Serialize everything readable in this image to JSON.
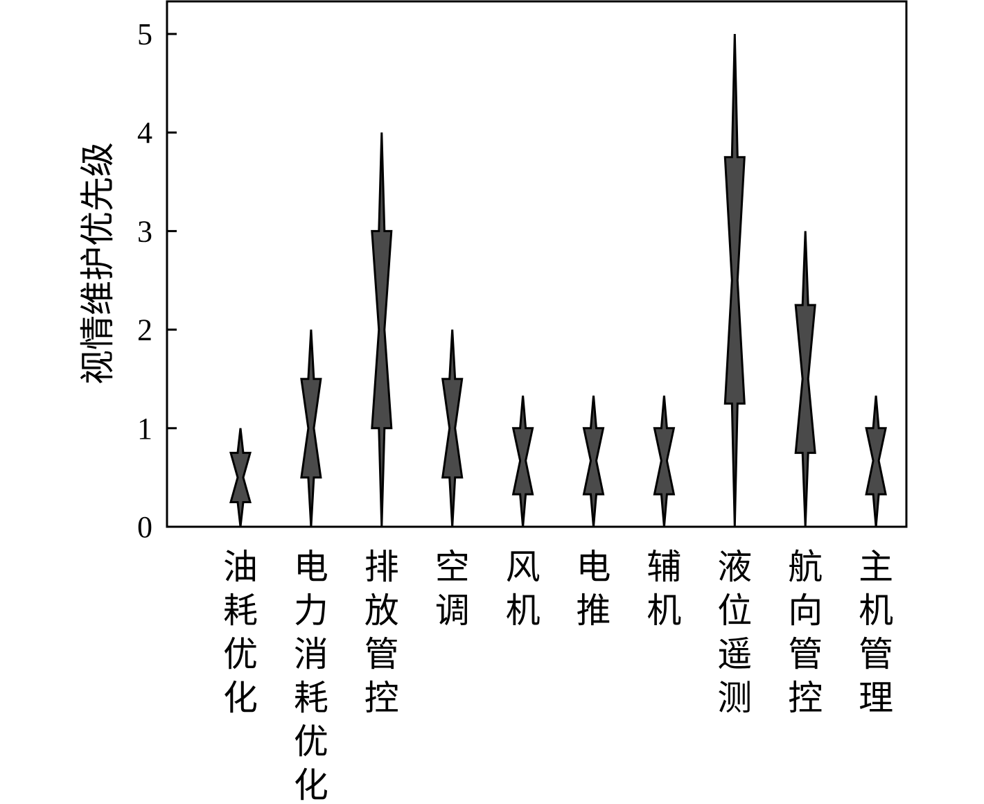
{
  "chart_data": {
    "type": "violin",
    "title": "",
    "xlabel": "",
    "ylabel": "视情维护优先级",
    "ylim": [
      0,
      5.3
    ],
    "yticks": [
      0,
      1,
      2,
      3,
      4,
      5
    ],
    "categories": [
      "油耗优化",
      "电力消耗优化",
      "排放管控",
      "空调",
      "风机",
      "电推",
      "辅机",
      "液位遥测",
      "航向管控",
      "主机管理"
    ],
    "distributions": [
      {
        "category": "油耗优化",
        "min": 0,
        "q1": 0.25,
        "median": 0.5,
        "q3": 0.75,
        "max": 1.0
      },
      {
        "category": "电力消耗优化",
        "min": 0,
        "q1": 0.5,
        "median": 1.0,
        "q3": 1.5,
        "max": 2.0
      },
      {
        "category": "排放管控",
        "min": 0,
        "q1": 1.0,
        "median": 2.0,
        "q3": 3.0,
        "max": 4.0
      },
      {
        "category": "空调",
        "min": 0,
        "q1": 0.5,
        "median": 1.0,
        "q3": 1.5,
        "max": 2.0
      },
      {
        "category": "风机",
        "min": 0,
        "q1": 0.33,
        "median": 0.67,
        "q3": 1.0,
        "max": 1.33
      },
      {
        "category": "电推",
        "min": 0,
        "q1": 0.33,
        "median": 0.67,
        "q3": 1.0,
        "max": 1.33
      },
      {
        "category": "辅机",
        "min": 0,
        "q1": 0.33,
        "median": 0.67,
        "q3": 1.0,
        "max": 1.33
      },
      {
        "category": "液位遥测",
        "min": 0,
        "q1": 1.25,
        "median": 2.5,
        "q3": 3.75,
        "max": 5.0
      },
      {
        "category": "航向管控",
        "min": 0,
        "q1": 0.75,
        "median": 1.5,
        "q3": 2.25,
        "max": 3.0
      },
      {
        "category": "主机管理",
        "min": 0,
        "q1": 0.33,
        "median": 0.67,
        "q3": 1.0,
        "max": 1.33
      }
    ],
    "fill_color": "#4a4a4a",
    "stroke_color": "#000000",
    "grid": false,
    "legend": "none"
  }
}
